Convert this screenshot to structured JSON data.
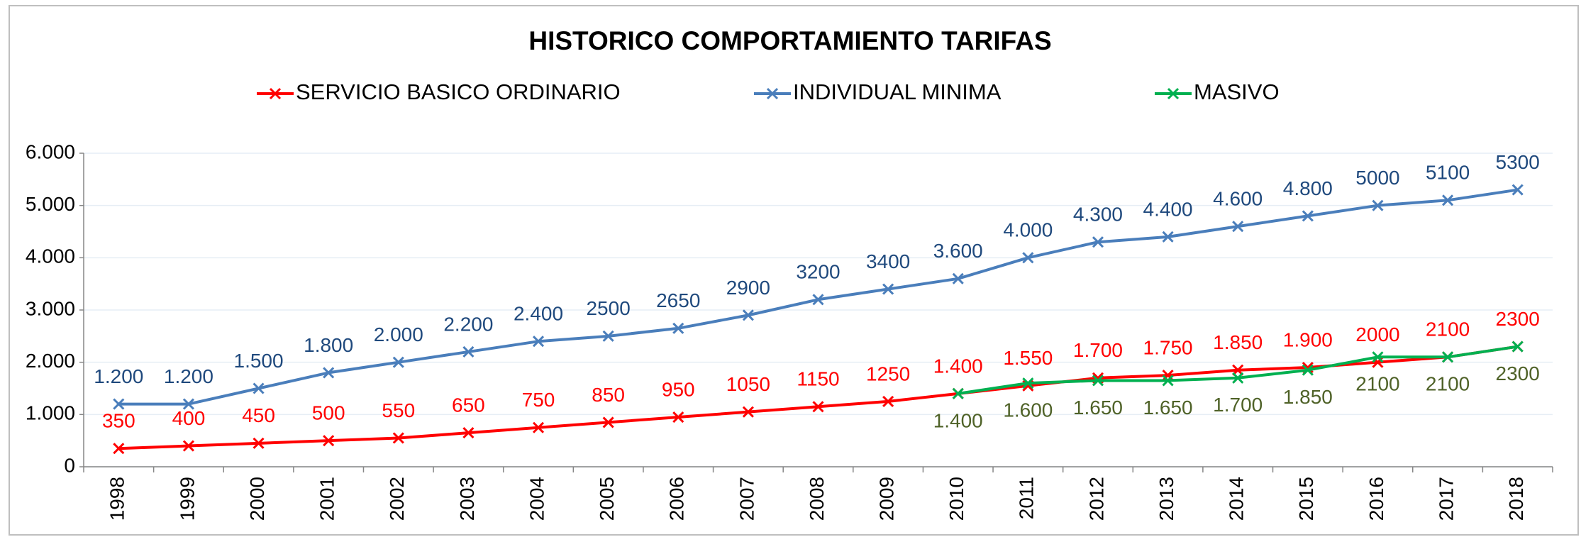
{
  "chart_data": {
    "type": "line",
    "title": "HISTORICO COMPORTAMIENTO TARIFAS",
    "categories": [
      "1998",
      "1999",
      "2000",
      "2001",
      "2002",
      "2003",
      "2004",
      "2005",
      "2006",
      "2007",
      "2008",
      "2009",
      "2010",
      "2011",
      "2012",
      "2013",
      "2014",
      "2015",
      "2016",
      "2017",
      "2018"
    ],
    "series": [
      {
        "name": "SERVICIO  BASICO ORDINARIO",
        "color": "#ff0000",
        "label_color": "#ff0000",
        "values": [
          350,
          400,
          450,
          500,
          550,
          650,
          750,
          850,
          950,
          1050,
          1150,
          1250,
          1400,
          1550,
          1700,
          1750,
          1850,
          1900,
          2000,
          2100,
          2300
        ],
        "value_labels": [
          "350",
          "400",
          "450",
          "500",
          "550",
          "650",
          "750",
          "850",
          "950",
          "1050",
          "1150",
          "1250",
          "1.400",
          "1.550",
          "1.700",
          "1.750",
          "1.850",
          "1.900",
          "2000",
          "2100",
          "2300"
        ]
      },
      {
        "name": "INDIVIDUAL MINIMA",
        "color": "#4a7ebb",
        "label_color": "#1f497d",
        "values": [
          1200,
          1200,
          1500,
          1800,
          2000,
          2200,
          2400,
          2500,
          2650,
          2900,
          3200,
          3400,
          3600,
          4000,
          4300,
          4400,
          4600,
          4800,
          5000,
          5100,
          5300
        ],
        "value_labels": [
          "1.200",
          "1.200",
          "1.500",
          "1.800",
          "2.000",
          "2.200",
          "2.400",
          "2500",
          "2650",
          "2900",
          "3200",
          "3400",
          "3.600",
          "4.000",
          "4.300",
          "4.400",
          "4.600",
          "4.800",
          "5000",
          "5100",
          "5300"
        ]
      },
      {
        "name": "MASIVO",
        "color": "#00b050",
        "label_color": "#4f6228",
        "values": [
          null,
          null,
          null,
          null,
          null,
          null,
          null,
          null,
          null,
          null,
          null,
          null,
          1400,
          1600,
          1650,
          1650,
          1700,
          1850,
          2100,
          2100,
          2300
        ],
        "value_labels": [
          null,
          null,
          null,
          null,
          null,
          null,
          null,
          null,
          null,
          null,
          null,
          null,
          "1.400",
          "1.600",
          "1.650",
          "1.650",
          "1.700",
          "1.850",
          "2100",
          "2100",
          "2300"
        ]
      }
    ],
    "ylim": [
      0,
      6000
    ],
    "yticks": [
      0,
      {
        "value": 1000,
        "label": "1.000"
      },
      {
        "value": 2000,
        "label": "2.000"
      },
      {
        "value": 3000,
        "label": "3.000"
      },
      {
        "value": 4000,
        "label": "4.000"
      },
      {
        "value": 5000,
        "label": "5.000"
      },
      {
        "value": 6000,
        "label": "6.000"
      }
    ],
    "grid": true,
    "legend": "top"
  }
}
